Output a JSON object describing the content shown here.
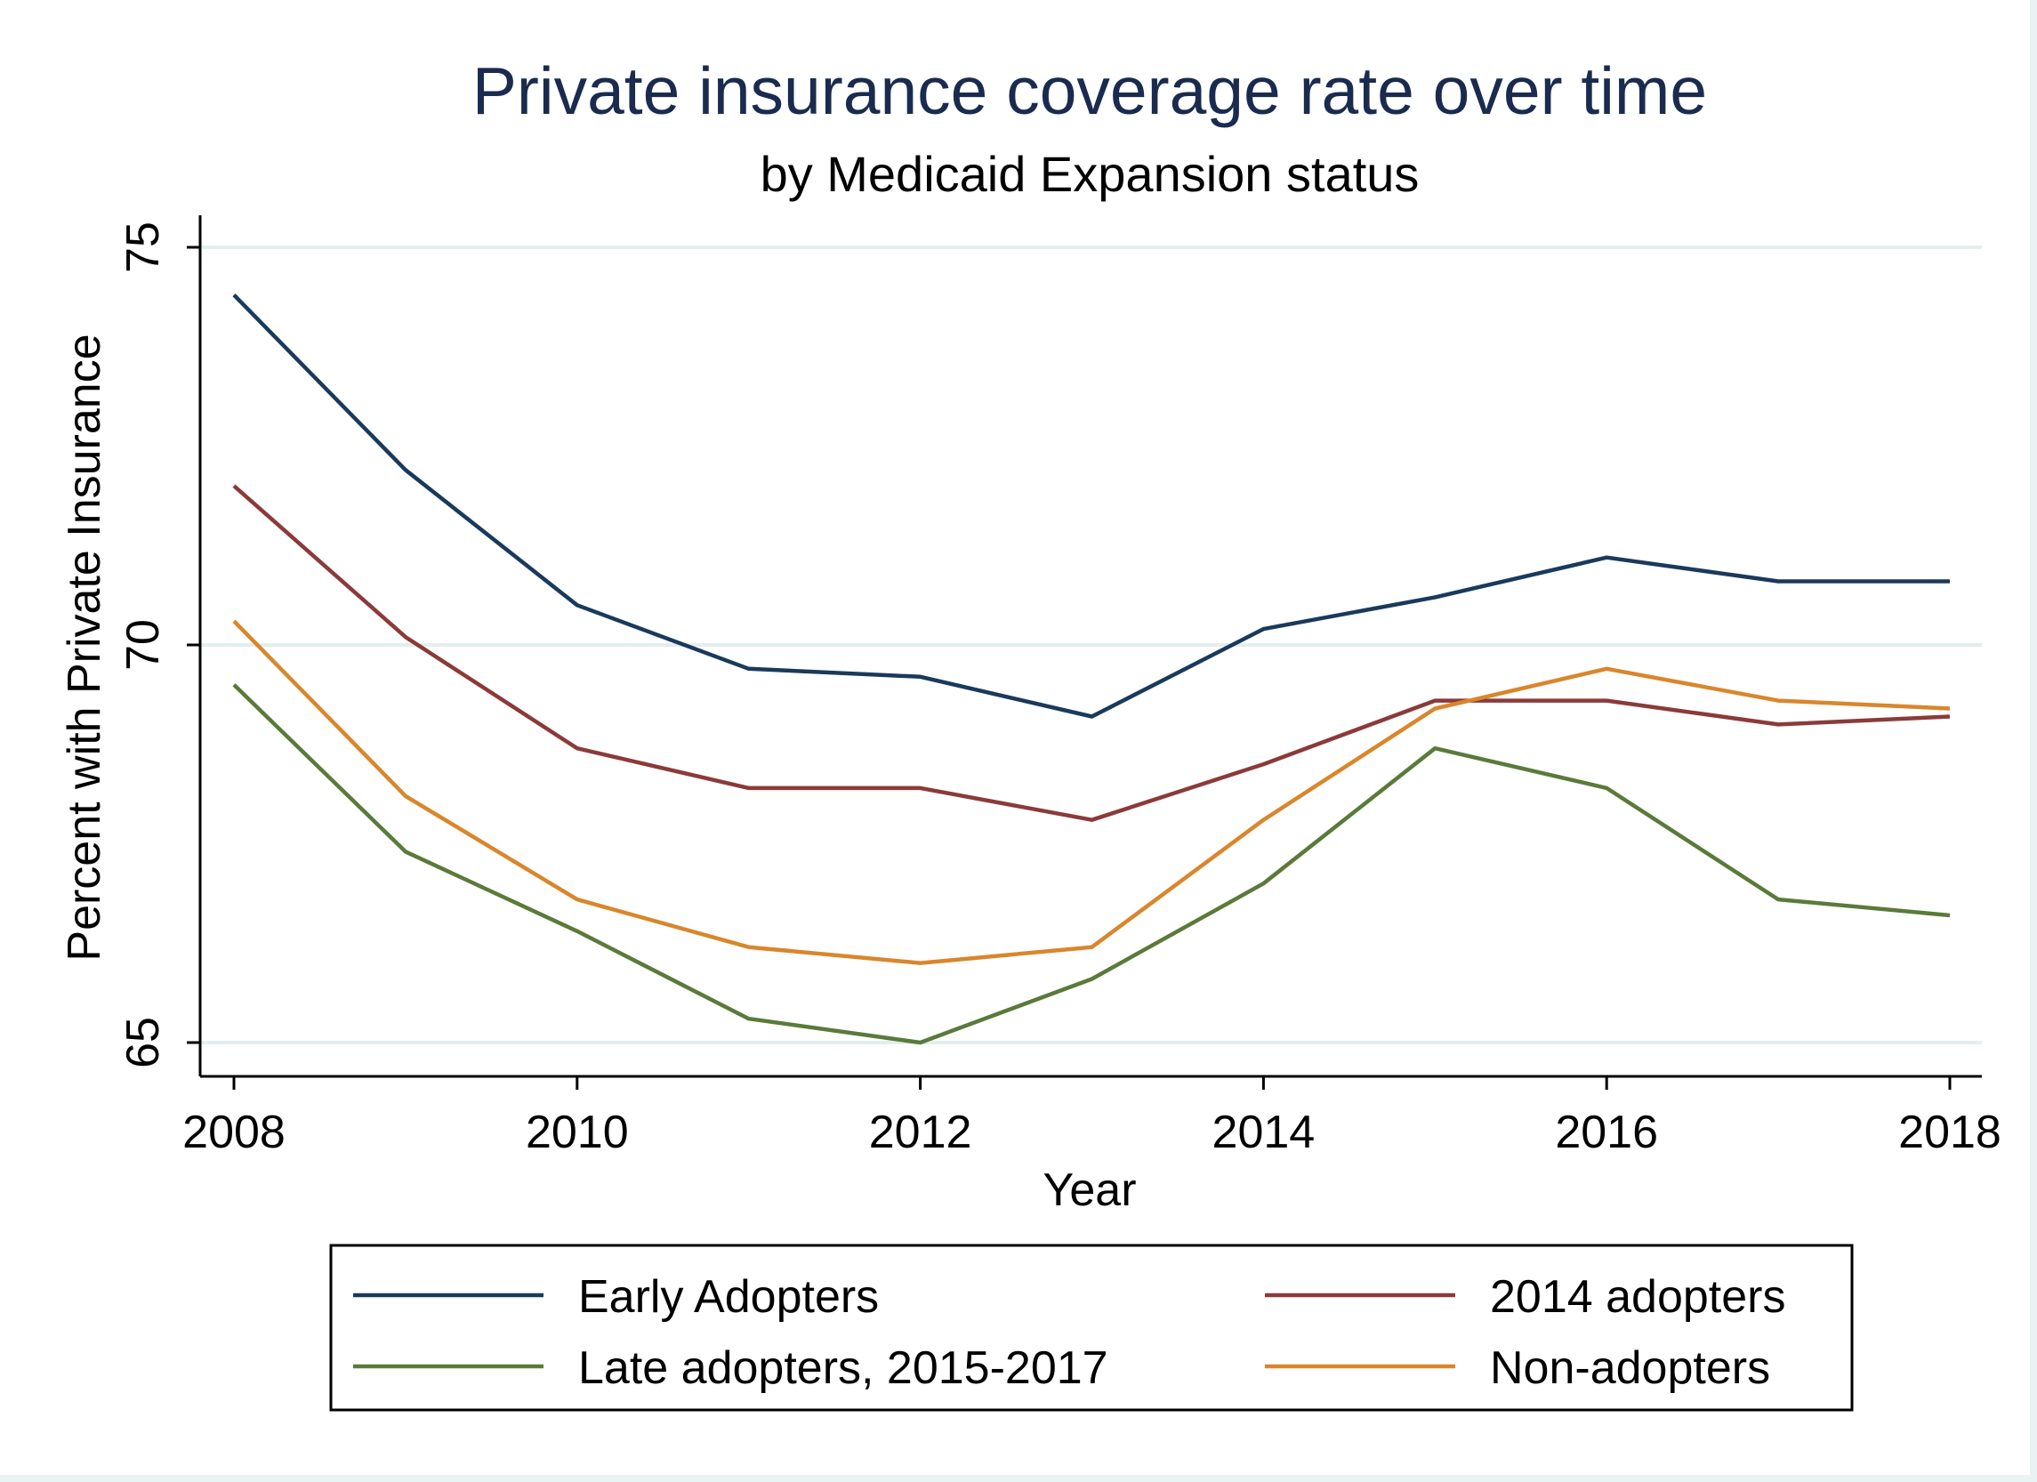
{
  "chart_data": {
    "type": "line",
    "title": "Private insurance coverage rate over time",
    "subtitle": "by Medicaid Expansion status",
    "xlabel": "Year",
    "ylabel": "Percent with Private Insurance",
    "x": [
      2008,
      2009,
      2010,
      2011,
      2012,
      2013,
      2014,
      2015,
      2016,
      2017,
      2018
    ],
    "xticks": [
      2008,
      2010,
      2012,
      2014,
      2016,
      2018
    ],
    "yticks": [
      65,
      70,
      75
    ],
    "xlim": [
      2008,
      2018
    ],
    "ylim": [
      64.6,
      75.2
    ],
    "grid": true,
    "legend_position": "bottom",
    "series": [
      {
        "name": "Early Adopters",
        "color": "#1a3a5c",
        "values": [
          74.4,
          72.2,
          70.5,
          69.7,
          69.6,
          69.1,
          70.2,
          70.6,
          71.1,
          70.8,
          70.8
        ]
      },
      {
        "name": "2014 adopters",
        "color": "#8b3a3a",
        "values": [
          72.0,
          70.1,
          68.7,
          68.2,
          68.2,
          67.8,
          68.5,
          69.3,
          69.3,
          69.0,
          69.1
        ]
      },
      {
        "name": "Late adopters, 2015-2017",
        "color": "#5a7a3a",
        "values": [
          69.5,
          67.4,
          66.4,
          65.3,
          65.0,
          65.8,
          67.0,
          68.7,
          68.2,
          66.8,
          66.6
        ]
      },
      {
        "name": "Non-adopters",
        "color": "#d9862c",
        "values": [
          70.3,
          68.1,
          66.8,
          66.2,
          66.0,
          66.2,
          67.8,
          69.2,
          69.7,
          69.3,
          69.2
        ]
      }
    ]
  }
}
